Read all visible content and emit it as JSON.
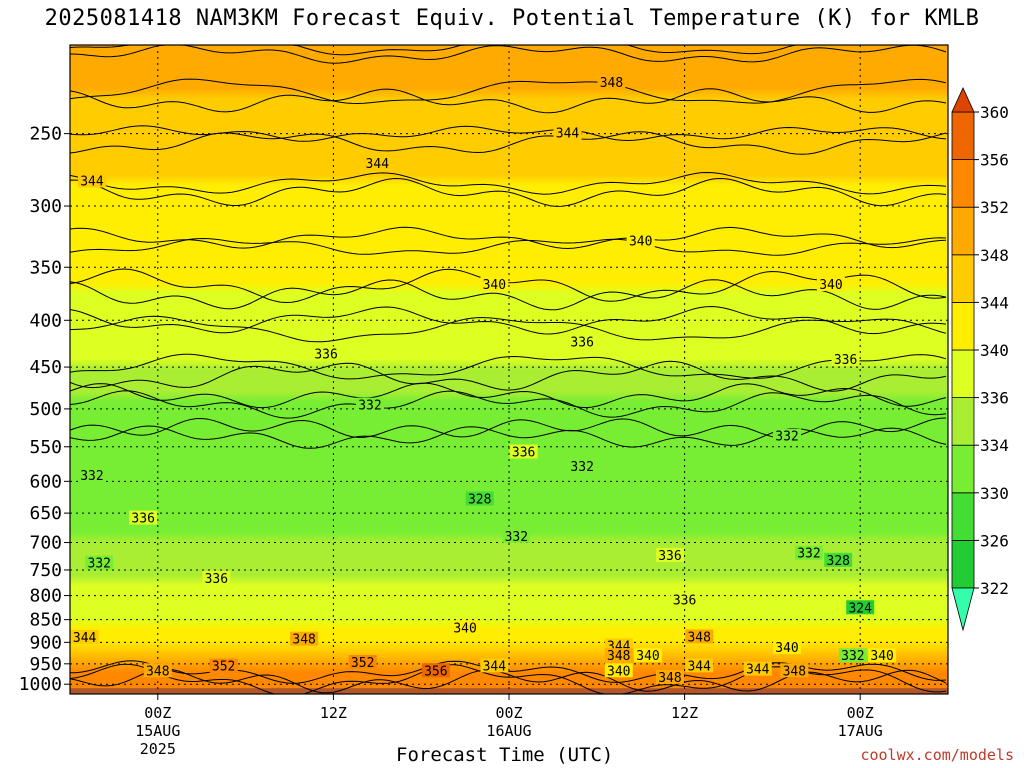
{
  "chart_data": {
    "type": "heatmap",
    "title": "2025081418 NAM3KM Forecast Equiv. Potential Temperature (K) for KMLB",
    "xlabel": "Forecast Time (UTC)",
    "ylabel": "",
    "x_ticks": [
      {
        "hours": 6,
        "lines": [
          "00Z",
          "15AUG",
          "2025"
        ]
      },
      {
        "hours": 18,
        "lines": [
          "12Z"
        ]
      },
      {
        "hours": 30,
        "lines": [
          "00Z",
          "16AUG"
        ]
      },
      {
        "hours": 42,
        "lines": [
          "12Z"
        ]
      },
      {
        "hours": 54,
        "lines": [
          "00Z",
          "17AUG"
        ]
      }
    ],
    "xlim_hours": [
      0,
      60
    ],
    "y_scale": "log",
    "ylim": [
      1025,
      200
    ],
    "y_ticks": [
      250,
      300,
      350,
      400,
      450,
      500,
      550,
      600,
      650,
      700,
      750,
      800,
      850,
      900,
      950,
      1000
    ],
    "colorbar": {
      "labels": [
        322,
        326,
        330,
        334,
        336,
        340,
        344,
        348,
        352,
        356,
        360
      ],
      "colors": [
        "#33ffaa",
        "#22cc33",
        "#44dd33",
        "#77ee33",
        "#aaee33",
        "#ddff22",
        "#ffee00",
        "#ffcc00",
        "#ffaa00",
        "#ff8800",
        "#ee6600",
        "#dd4400"
      ]
    },
    "profile_mean": [
      {
        "p": 200,
        "theta": 350
      },
      {
        "p": 250,
        "theta": 346
      },
      {
        "p": 300,
        "theta": 343
      },
      {
        "p": 350,
        "theta": 341
      },
      {
        "p": 400,
        "theta": 338
      },
      {
        "p": 450,
        "theta": 336
      },
      {
        "p": 500,
        "theta": 333
      },
      {
        "p": 550,
        "theta": 331
      },
      {
        "p": 600,
        "theta": 331
      },
      {
        "p": 650,
        "theta": 333
      },
      {
        "p": 700,
        "theta": 334
      },
      {
        "p": 750,
        "theta": 335
      },
      {
        "p": 800,
        "theta": 337
      },
      {
        "p": 850,
        "theta": 339
      },
      {
        "p": 900,
        "theta": 344
      },
      {
        "p": 950,
        "theta": 350
      },
      {
        "p": 1000,
        "theta": 355
      }
    ],
    "contour_labels": [
      {
        "hours": 37,
        "p": 220,
        "text": "348"
      },
      {
        "hours": 34,
        "p": 250,
        "text": "344"
      },
      {
        "hours": 21,
        "p": 270,
        "text": "344"
      },
      {
        "hours": 1.5,
        "p": 282,
        "text": "344"
      },
      {
        "hours": 39,
        "p": 328,
        "text": "340"
      },
      {
        "hours": 29,
        "p": 366,
        "text": "340"
      },
      {
        "hours": 52,
        "p": 366,
        "text": "340"
      },
      {
        "hours": 35,
        "p": 423,
        "text": "336"
      },
      {
        "hours": 17.5,
        "p": 436,
        "text": "336"
      },
      {
        "hours": 53,
        "p": 442,
        "text": "336"
      },
      {
        "hours": 20.5,
        "p": 496,
        "text": "332"
      },
      {
        "hours": 49,
        "p": 536,
        "text": "332"
      },
      {
        "hours": 31,
        "p": 558,
        "text": "336"
      },
      {
        "hours": 35,
        "p": 579,
        "text": "332"
      },
      {
        "hours": 1.5,
        "p": 592,
        "text": "332"
      },
      {
        "hours": 28,
        "p": 628,
        "text": "328"
      },
      {
        "hours": 5,
        "p": 659,
        "text": "336"
      },
      {
        "hours": 30.5,
        "p": 690,
        "text": "332"
      },
      {
        "hours": 41,
        "p": 724,
        "text": "336"
      },
      {
        "hours": 50.5,
        "p": 720,
        "text": "332"
      },
      {
        "hours": 52.5,
        "p": 733,
        "text": "328"
      },
      {
        "hours": 2,
        "p": 738,
        "text": "332"
      },
      {
        "hours": 10,
        "p": 767,
        "text": "336"
      },
      {
        "hours": 42,
        "p": 810,
        "text": "336"
      },
      {
        "hours": 54,
        "p": 826,
        "text": "324"
      },
      {
        "hours": 27,
        "p": 869,
        "text": "340"
      },
      {
        "hours": 1,
        "p": 890,
        "text": "344"
      },
      {
        "hours": 16,
        "p": 894,
        "text": "348"
      },
      {
        "hours": 43,
        "p": 889,
        "text": "348"
      },
      {
        "hours": 37.5,
        "p": 909,
        "text": "344"
      },
      {
        "hours": 49,
        "p": 913,
        "text": "340"
      },
      {
        "hours": 37.5,
        "p": 932,
        "text": "348"
      },
      {
        "hours": 39.5,
        "p": 932,
        "text": "340"
      },
      {
        "hours": 53.5,
        "p": 932,
        "text": "332"
      },
      {
        "hours": 55.5,
        "p": 932,
        "text": "340"
      },
      {
        "hours": 20,
        "p": 948,
        "text": "352"
      },
      {
        "hours": 10.5,
        "p": 957,
        "text": "352"
      },
      {
        "hours": 29,
        "p": 956,
        "text": "344"
      },
      {
        "hours": 43,
        "p": 956,
        "text": "344"
      },
      {
        "hours": 47,
        "p": 964,
        "text": "344"
      },
      {
        "hours": 6,
        "p": 968,
        "text": "348"
      },
      {
        "hours": 25,
        "p": 968,
        "text": "356"
      },
      {
        "hours": 37.5,
        "p": 968,
        "text": "340"
      },
      {
        "hours": 49.5,
        "p": 968,
        "text": "348"
      },
      {
        "hours": 41,
        "p": 984,
        "text": "348"
      }
    ]
  },
  "credit": "coolwx.com/models"
}
